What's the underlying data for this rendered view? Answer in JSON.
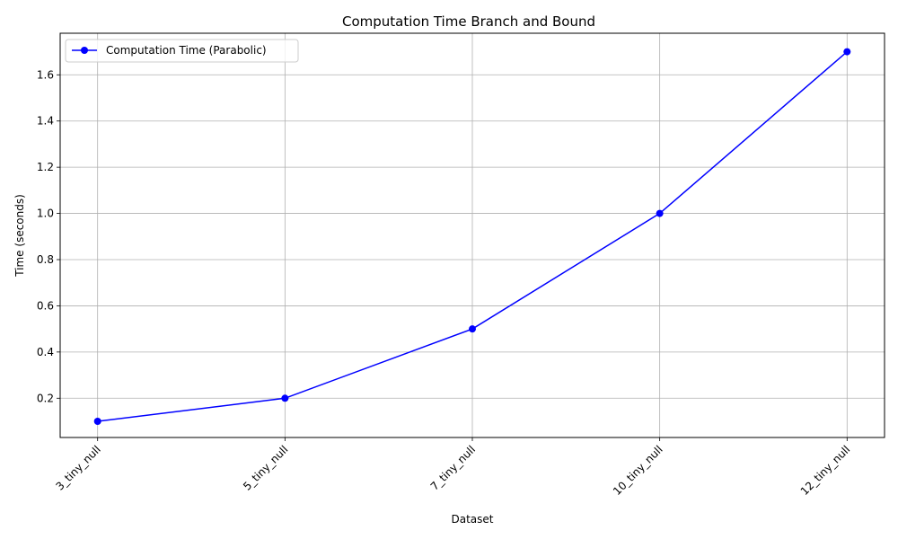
{
  "chart_data": {
    "type": "line",
    "title": "Computation Time Branch and Bound",
    "xlabel": "Dataset",
    "ylabel": "Time (seconds)",
    "categories": [
      "3_tiny_null",
      "5_tiny_null",
      "7_tiny_null",
      "10_tiny_null",
      "12_tiny_null"
    ],
    "series": [
      {
        "name": "Computation Time (Parabolic)",
        "values": [
          0.1,
          0.2,
          0.5,
          1.0,
          1.7
        ],
        "color": "#0000ff",
        "marker": "circle"
      }
    ],
    "ylim": [
      0.03,
      1.78
    ],
    "yticks": [
      0.2,
      0.4,
      0.6,
      0.8,
      1.0,
      1.2,
      1.4,
      1.6
    ],
    "ytick_labels": [
      "0.2",
      "0.4",
      "0.6",
      "0.8",
      "1.0",
      "1.2",
      "1.4",
      "1.6"
    ],
    "grid": true,
    "legend_position": "top-left",
    "xtick_rotation": "45 degrees"
  }
}
